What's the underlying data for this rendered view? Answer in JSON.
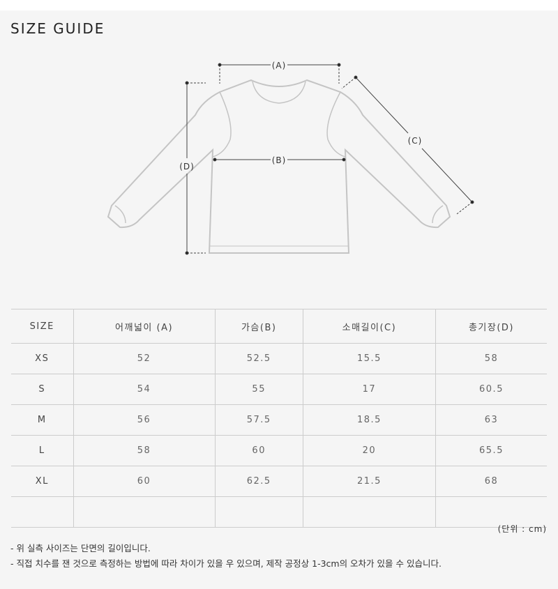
{
  "title": "SIZE GUIDE",
  "diagram": {
    "labels": {
      "a": "(A)",
      "b": "(B)",
      "c": "(C)",
      "d": "(D)"
    }
  },
  "table": {
    "headers": [
      "SIZE",
      "어깨넓이 (A)",
      "가슴(B)",
      "소매길이(C)",
      "총기장(D)"
    ],
    "rows": [
      [
        "XS",
        "52",
        "52.5",
        "15.5",
        "58"
      ],
      [
        "S",
        "54",
        "55",
        "17",
        "60.5"
      ],
      [
        "M",
        "56",
        "57.5",
        "18.5",
        "63"
      ],
      [
        "L",
        "58",
        "60",
        "20",
        "65.5"
      ],
      [
        "XL",
        "60",
        "62.5",
        "21.5",
        "68"
      ],
      [
        "",
        "",
        "",
        "",
        ""
      ]
    ]
  },
  "unit": "(단위 : cm)",
  "notes": [
    "- 위 실측 사이즈는 단면의 길이입니다.",
    "- 직접 치수를 잰 것으로 측정하는 방법에 따라 차이가 있을 우 있으며, 제작 공정상 1-3cm의 오차가 있을 수 있습니다."
  ]
}
